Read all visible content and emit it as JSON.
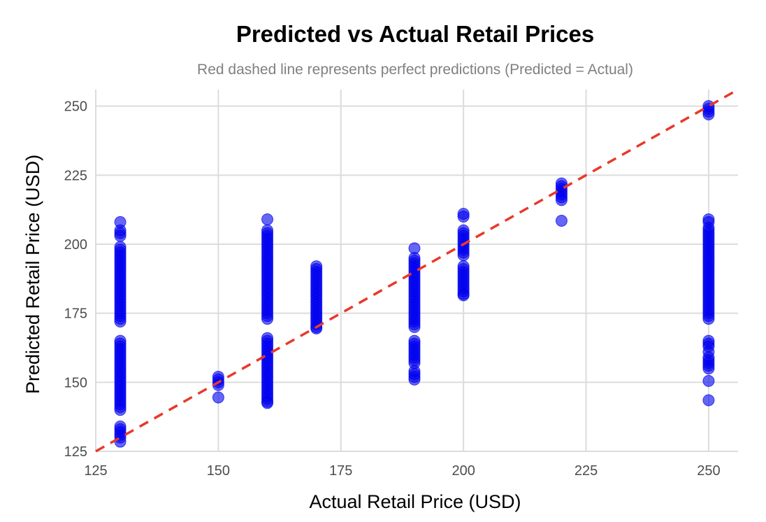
{
  "chart_data": {
    "type": "scatter",
    "title": "Predicted vs Actual Retail Prices",
    "subtitle": "Red dashed line represents perfect predictions (Predicted = Actual)",
    "xlabel": "Actual Retail Price (USD)",
    "ylabel": "Predicted Retail Price (USD)",
    "xlim": [
      125,
      256
    ],
    "ylim": [
      125,
      256
    ],
    "x_ticks": [
      125,
      150,
      175,
      200,
      225,
      250
    ],
    "y_ticks": [
      125,
      150,
      175,
      200,
      225,
      250
    ],
    "grid": true,
    "legend": "none",
    "colors": {
      "points": "#0000ee",
      "reference_line": "#e8392b",
      "grid": "#dcdcdc"
    },
    "reference_line": {
      "label": "",
      "from": [
        125,
        125
      ],
      "to": [
        256,
        256
      ],
      "style": "dashed"
    },
    "series": [
      {
        "x": 130,
        "y": [
          128.5,
          130,
          131,
          132,
          133,
          134,
          140,
          141,
          142,
          143,
          144,
          145,
          146,
          147,
          148,
          149,
          150,
          151,
          152,
          153,
          154,
          155,
          156,
          157,
          158,
          159,
          160,
          161,
          162,
          163,
          164,
          165,
          172,
          173,
          174,
          175,
          176,
          177,
          178,
          179,
          180,
          181,
          182,
          183,
          184,
          185,
          186,
          187,
          188,
          189,
          190,
          191,
          192,
          193,
          194,
          195,
          196,
          197,
          198,
          199,
          203,
          204,
          205,
          208
        ]
      },
      {
        "x": 150,
        "y": [
          144.5,
          149,
          150,
          151,
          152
        ]
      },
      {
        "x": 160,
        "y": [
          142.5,
          143,
          144,
          145,
          146,
          147,
          148,
          149,
          150,
          151,
          152,
          153,
          154,
          155,
          156,
          157,
          158,
          159,
          160,
          161,
          162,
          163,
          164,
          165,
          166,
          173,
          174,
          175,
          176,
          177,
          178,
          179,
          180,
          181,
          182,
          183,
          184,
          185,
          186,
          187,
          188,
          189,
          190,
          191,
          192,
          193,
          194,
          195,
          196,
          197,
          198,
          199,
          200,
          201,
          202,
          203,
          204,
          205,
          209
        ]
      },
      {
        "x": 170,
        "y": [
          169.5,
          170,
          171,
          172,
          173,
          174,
          175,
          176,
          177,
          178,
          179,
          180,
          181,
          182,
          183,
          184,
          185,
          186,
          187,
          188,
          189,
          190,
          191,
          192
        ]
      },
      {
        "x": 190,
        "y": [
          151,
          152,
          153,
          154,
          157,
          158,
          159,
          160,
          161,
          162,
          163,
          164,
          165,
          170,
          171,
          172,
          173,
          174,
          175,
          176,
          177,
          178,
          179,
          180,
          181,
          182,
          183,
          184,
          185,
          186,
          187,
          188,
          189,
          190,
          191,
          192,
          193,
          194,
          195,
          198.5
        ]
      },
      {
        "x": 200,
        "y": [
          181.5,
          182,
          183,
          184,
          185,
          186,
          187,
          188,
          189,
          190,
          191,
          192,
          196,
          197,
          198,
          199,
          200,
          201,
          202,
          203,
          204,
          205,
          210,
          211
        ]
      },
      {
        "x": 220,
        "y": [
          208.5,
          216,
          217,
          218,
          219,
          220,
          221,
          222
        ]
      },
      {
        "x": 250,
        "y": [
          143.5,
          150.5,
          155,
          156,
          157,
          158,
          159,
          161,
          163,
          164,
          165,
          173,
          174,
          175,
          176,
          177,
          178,
          179,
          180,
          181,
          182,
          183,
          184,
          185,
          186,
          187,
          188,
          189,
          190,
          191,
          192,
          193,
          194,
          195,
          196,
          197,
          198,
          199,
          200,
          201,
          202,
          203,
          204,
          205,
          206,
          208,
          209,
          247,
          248,
          249,
          250
        ]
      }
    ]
  }
}
